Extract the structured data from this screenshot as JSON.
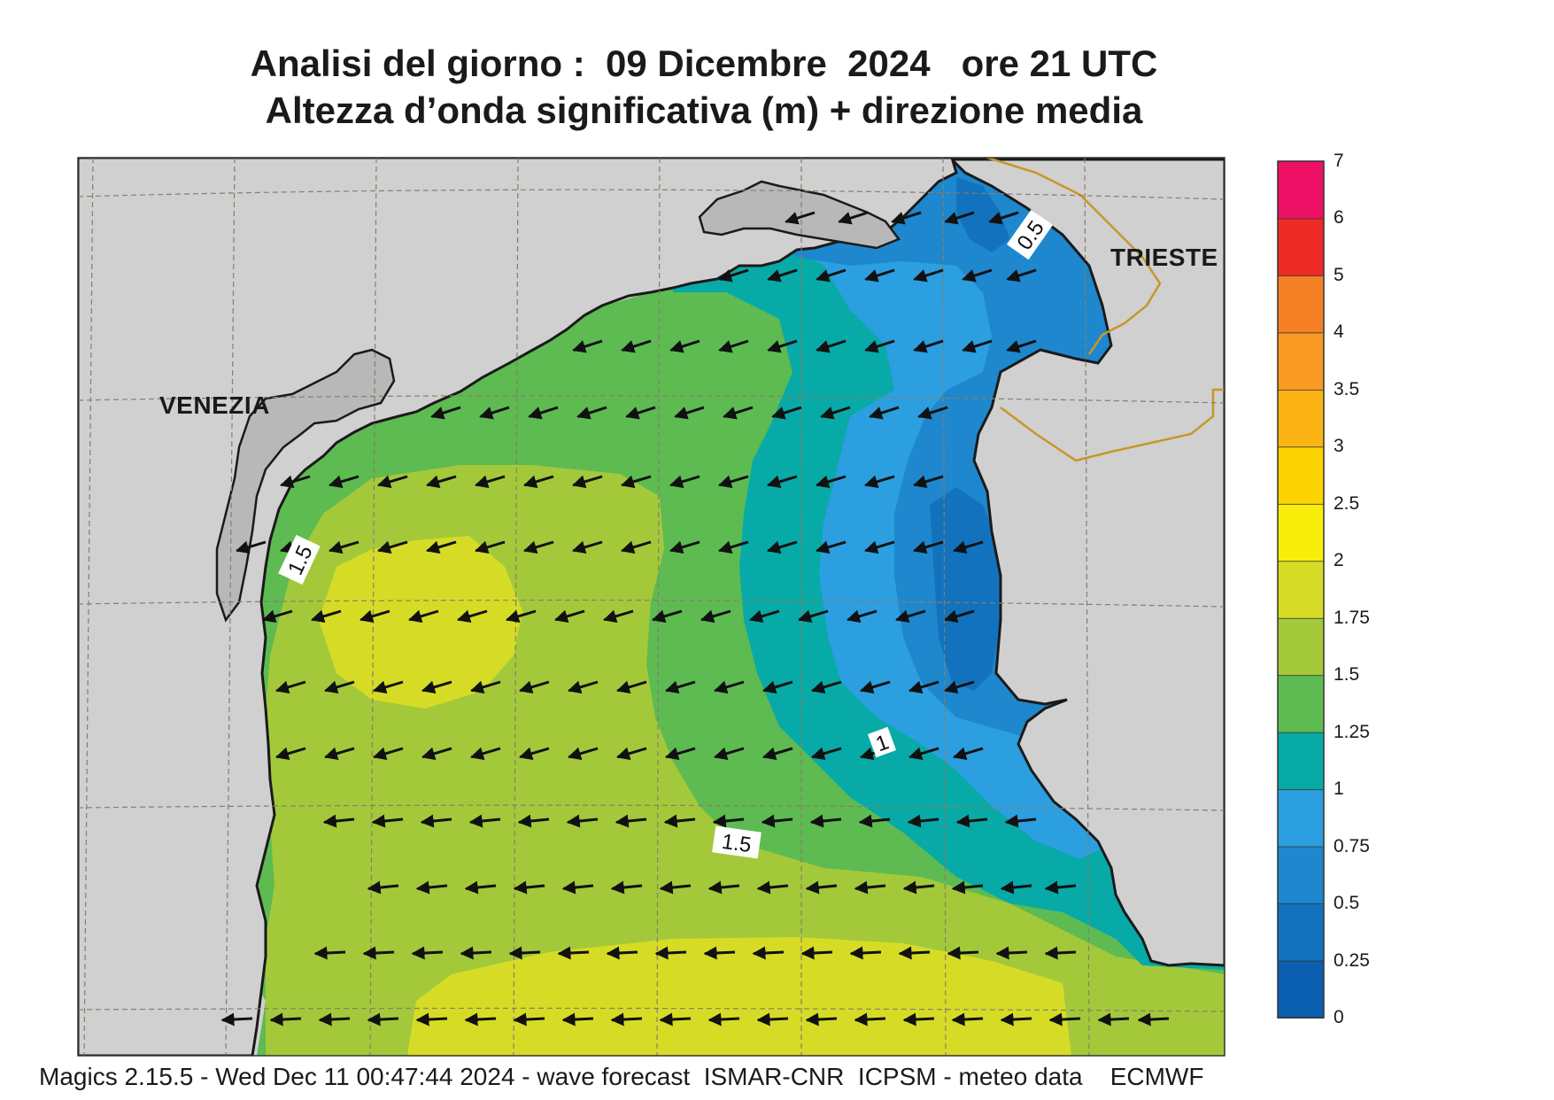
{
  "title": {
    "line1": "Analisi del giorno :  09 Dicembre  2024   ore 21 UTC",
    "line2": "Altezza d’onda significativa (m) + direzione media"
  },
  "cities": {
    "venezia": "VENEZIA",
    "trieste": "TRIESTE"
  },
  "contour_labels": [
    "0.5",
    "1.5",
    "1",
    "1.5"
  ],
  "legend": {
    "levels": [
      "0",
      "0.25",
      "0.5",
      "0.75",
      "1",
      "1.25",
      "1.5",
      "1.75",
      "2",
      "2.5",
      "3",
      "3.5",
      "4",
      "5",
      "6",
      "7"
    ],
    "colors": [
      "#0a5fb0",
      "#1272bd",
      "#1e87cd",
      "#2b9fdf",
      "#07aaa6",
      "#5dbb52",
      "#a3c93a",
      "#d6dc26",
      "#f9ee0a",
      "#fcd200",
      "#fbb315",
      "#f89a24",
      "#f57f25",
      "#ee2a26",
      "#ec1165"
    ]
  },
  "footer": "Magics 2.15.5 - Wed Dec 11 00:47:44 2024 - wave forecast  ISMAR-CNR  ICPSM - meteo data    ECMWF"
}
